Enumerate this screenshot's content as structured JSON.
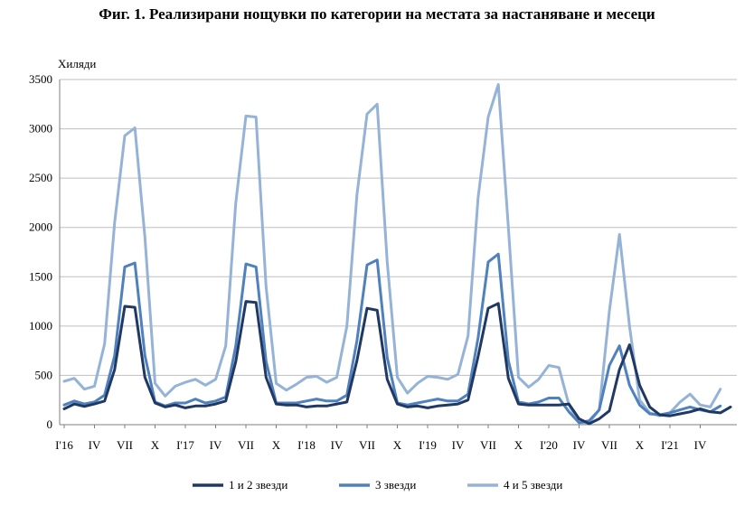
{
  "chart_data": {
    "type": "line",
    "title": "Фиг. 1. Реализирани нощувки по категории на местата за настаняване и месеци",
    "ylabel": "Хиляди",
    "xlabel": "",
    "ylim": [
      0,
      3500
    ],
    "yticks": [
      0,
      500,
      1000,
      1500,
      2000,
      2500,
      3000,
      3500
    ],
    "grid": true,
    "legend_position": "bottom",
    "x_tick_labels": [
      {
        "index": 0,
        "label": "I'16"
      },
      {
        "index": 3,
        "label": "IV"
      },
      {
        "index": 6,
        "label": "VII"
      },
      {
        "index": 9,
        "label": "X"
      },
      {
        "index": 12,
        "label": "I'17"
      },
      {
        "index": 15,
        "label": "IV"
      },
      {
        "index": 18,
        "label": "VII"
      },
      {
        "index": 21,
        "label": "X"
      },
      {
        "index": 24,
        "label": "I'18"
      },
      {
        "index": 27,
        "label": "IV"
      },
      {
        "index": 30,
        "label": "VII"
      },
      {
        "index": 33,
        "label": "X"
      },
      {
        "index": 36,
        "label": "I'19"
      },
      {
        "index": 39,
        "label": "IV"
      },
      {
        "index": 42,
        "label": "VII"
      },
      {
        "index": 45,
        "label": "X"
      },
      {
        "index": 48,
        "label": "I'20"
      },
      {
        "index": 51,
        "label": "IV"
      },
      {
        "index": 54,
        "label": "VII"
      },
      {
        "index": 57,
        "label": "X"
      },
      {
        "index": 60,
        "label": "I'21"
      },
      {
        "index": 63,
        "label": "IV"
      }
    ],
    "series": [
      {
        "name": "1 и 2 звезди",
        "color": "#1f3864",
        "values": [
          160,
          210,
          185,
          210,
          240,
          560,
          1200,
          1190,
          480,
          220,
          180,
          200,
          170,
          190,
          190,
          210,
          240,
          640,
          1250,
          1240,
          480,
          210,
          200,
          200,
          180,
          190,
          190,
          210,
          230,
          650,
          1180,
          1160,
          460,
          210,
          180,
          190,
          170,
          190,
          200,
          210,
          250,
          690,
          1180,
          1230,
          470,
          210,
          200,
          200,
          200,
          200,
          210,
          60,
          10,
          60,
          140,
          560,
          810,
          400,
          180,
          100,
          90,
          110,
          130,
          160,
          130,
          120,
          180
        ]
      },
      {
        "name": "3 звезди",
        "color": "#4f81bd",
        "values": [
          200,
          240,
          210,
          230,
          300,
          700,
          1600,
          1640,
          700,
          230,
          190,
          220,
          220,
          260,
          220,
          240,
          280,
          800,
          1630,
          1600,
          640,
          220,
          220,
          220,
          240,
          260,
          240,
          240,
          300,
          850,
          1620,
          1670,
          680,
          220,
          200,
          220,
          240,
          260,
          240,
          240,
          310,
          880,
          1650,
          1730,
          650,
          230,
          210,
          230,
          270,
          270,
          130,
          20,
          40,
          150,
          600,
          800,
          400,
          200,
          110,
          100,
          120,
          150,
          180,
          150,
          130,
          190
        ]
      },
      {
        "name": "4 и 5 звезди",
        "color": "#95b3d7",
        "values": [
          440,
          470,
          360,
          390,
          820,
          2050,
          2930,
          3010,
          1900,
          420,
          290,
          390,
          430,
          460,
          400,
          460,
          800,
          2250,
          3130,
          3120,
          1400,
          420,
          350,
          410,
          480,
          490,
          430,
          480,
          1000,
          2330,
          3150,
          3250,
          1650,
          480,
          320,
          420,
          490,
          480,
          460,
          510,
          900,
          2300,
          3120,
          3450,
          2000,
          480,
          380,
          460,
          600,
          580,
          200,
          20,
          20,
          150,
          1150,
          1930,
          1000,
          250,
          120,
          90,
          120,
          230,
          310,
          200,
          180,
          360
        ]
      }
    ]
  }
}
